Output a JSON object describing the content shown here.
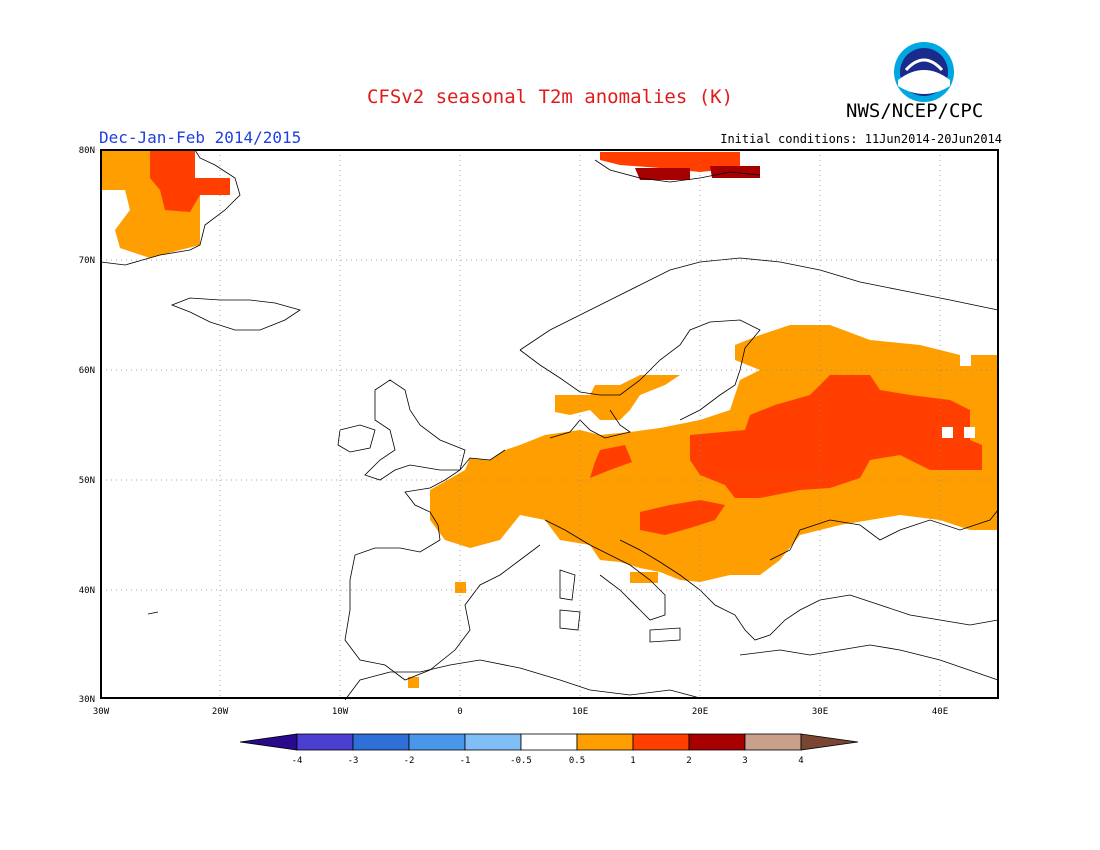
{
  "header": {
    "title": "CFSv2 seasonal T2m anomalies (K)",
    "agency": "NWS/NCEP/CPC",
    "logo_text": "NOAA",
    "season": "Dec-Jan-Feb 2014/2015",
    "initial_conditions": "Initial conditions: 11Jun2014-20Jun2014"
  },
  "map": {
    "lat_labels": [
      "80N",
      "70N",
      "60N",
      "50N",
      "40N",
      "30N"
    ],
    "lon_labels": [
      "30W",
      "20W",
      "10W",
      "0",
      "10E",
      "20E",
      "30E",
      "40E"
    ],
    "gridlines": "dotted"
  },
  "colorbar": {
    "labels": [
      "-4",
      "-3",
      "-2",
      "-1",
      "-0.5",
      "0.5",
      "1",
      "2",
      "3",
      "4"
    ],
    "colors": [
      "#2a0a8c",
      "#4a3fd0",
      "#2e6fd8",
      "#4a97ea",
      "#80bff5",
      "#ffffff",
      "#ff9e00",
      "#ff3e00",
      "#a60000",
      "#c8a08c",
      "#7a4632"
    ]
  },
  "colors": {
    "title": "#e01b1b",
    "season": "#1f3fe0",
    "anom_05_1": "#ff9e00",
    "anom_1_2": "#ff3e00",
    "anom_2_3": "#a60000"
  }
}
